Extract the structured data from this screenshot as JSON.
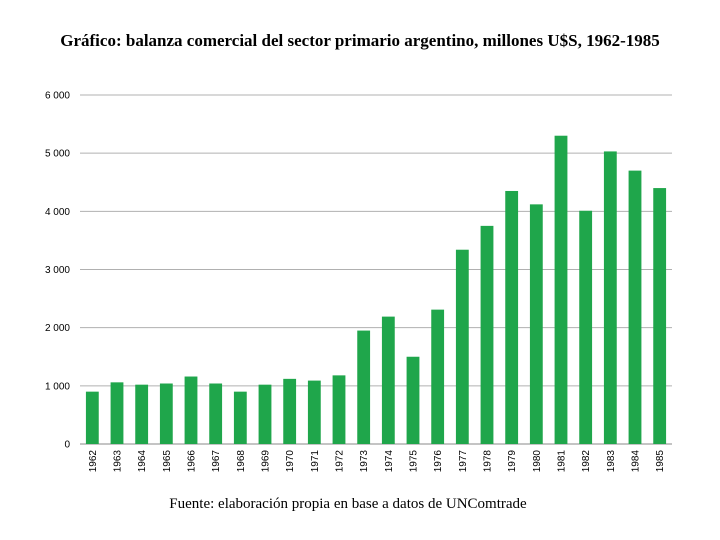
{
  "chart_data": {
    "type": "bar",
    "title": "Gráfico: balanza comercial del sector primario argentino, millones U$S, 1962-1985",
    "source_note": "Fuente: elaboración propia en base a datos de UNComtrade",
    "xlabel": "",
    "ylabel": "",
    "ylim": [
      0,
      6000
    ],
    "yticks": [
      0,
      1000,
      2000,
      3000,
      4000,
      5000,
      6000
    ],
    "ytick_labels": [
      "0",
      "1 000",
      "2 000",
      "3 000",
      "4 000",
      "5 000",
      "6 000"
    ],
    "grid": true,
    "bar_color": "#1fa64b",
    "categories": [
      "1962",
      "1963",
      "1964",
      "1965",
      "1966",
      "1967",
      "1968",
      "1969",
      "1970",
      "1971",
      "1972",
      "1973",
      "1974",
      "1975",
      "1976",
      "1977",
      "1978",
      "1979",
      "1980",
      "1981",
      "1982",
      "1983",
      "1984",
      "1985"
    ],
    "values": [
      900,
      1060,
      1020,
      1040,
      1160,
      1040,
      900,
      1020,
      1120,
      1090,
      1180,
      1950,
      2190,
      1500,
      2310,
      3340,
      3750,
      4350,
      4120,
      5300,
      4010,
      5030,
      4700,
      4400
    ]
  }
}
